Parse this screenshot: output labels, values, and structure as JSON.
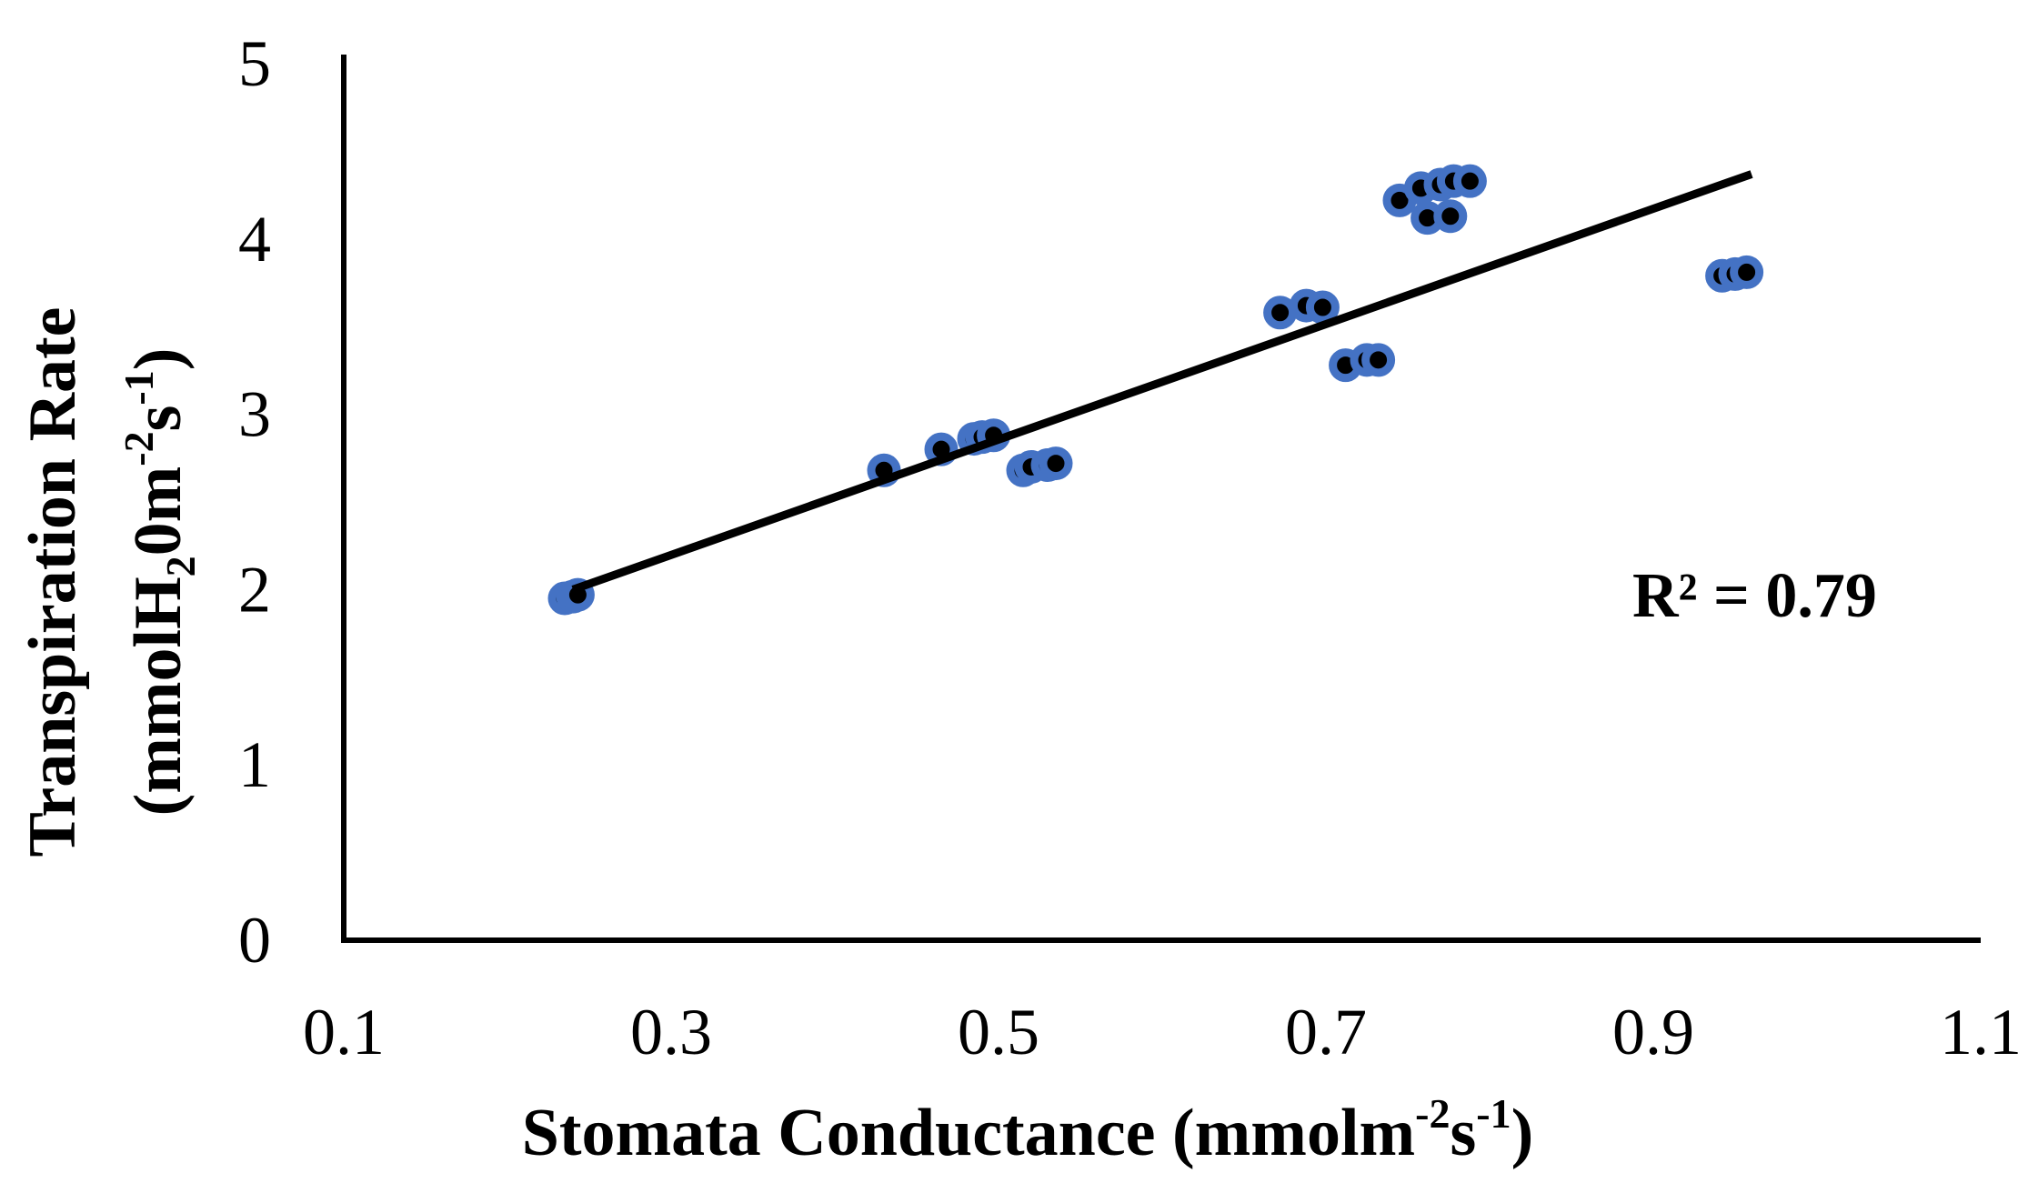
{
  "chart_data": {
    "type": "scatter",
    "xlabel_main": "Stomata Conductance (mmolm",
    "xlabel_sup1": "-2",
    "xlabel_mid": "s",
    "xlabel_sup2": "-1",
    "xlabel_end": ")",
    "ylabel_line1": "Transpiration Rate",
    "ylabel_line2_a": "(mmolH",
    "ylabel_line2_sub": "2",
    "ylabel_line2_b": "0m",
    "ylabel_line2_sup1": "-2",
    "ylabel_line2_c": "s",
    "ylabel_line2_sup2": "-1",
    "ylabel_line2_d": ")",
    "xlim": [
      0.1,
      1.1
    ],
    "ylim": [
      0,
      5
    ],
    "x_ticks": [
      "0.1",
      "0.3",
      "0.5",
      "0.7",
      "0.9",
      "1.1"
    ],
    "y_ticks": [
      "0",
      "1",
      "2",
      "3",
      "4",
      "5"
    ],
    "r_squared_label": "R² = 0.79",
    "trendline": {
      "x": [
        0.24,
        0.96
      ],
      "y": [
        2.0,
        4.37
      ]
    },
    "marker_color": "#4472C4",
    "marker_fill": "#000000",
    "points": [
      [
        0.235,
        1.95
      ],
      [
        0.24,
        1.96
      ],
      [
        0.243,
        1.97
      ],
      [
        0.43,
        2.68
      ],
      [
        0.465,
        2.8
      ],
      [
        0.485,
        2.86
      ],
      [
        0.49,
        2.87
      ],
      [
        0.497,
        2.88
      ],
      [
        0.515,
        2.68
      ],
      [
        0.52,
        2.7
      ],
      [
        0.53,
        2.71
      ],
      [
        0.535,
        2.72
      ],
      [
        0.672,
        3.58
      ],
      [
        0.688,
        3.62
      ],
      [
        0.698,
        3.61
      ],
      [
        0.712,
        3.28
      ],
      [
        0.725,
        3.31
      ],
      [
        0.732,
        3.31
      ],
      [
        0.745,
        4.22
      ],
      [
        0.758,
        4.29
      ],
      [
        0.77,
        4.31
      ],
      [
        0.778,
        4.33
      ],
      [
        0.762,
        4.12
      ],
      [
        0.776,
        4.13
      ],
      [
        0.788,
        4.33
      ],
      [
        0.942,
        3.79
      ],
      [
        0.95,
        3.8
      ],
      [
        0.957,
        3.81
      ]
    ]
  }
}
